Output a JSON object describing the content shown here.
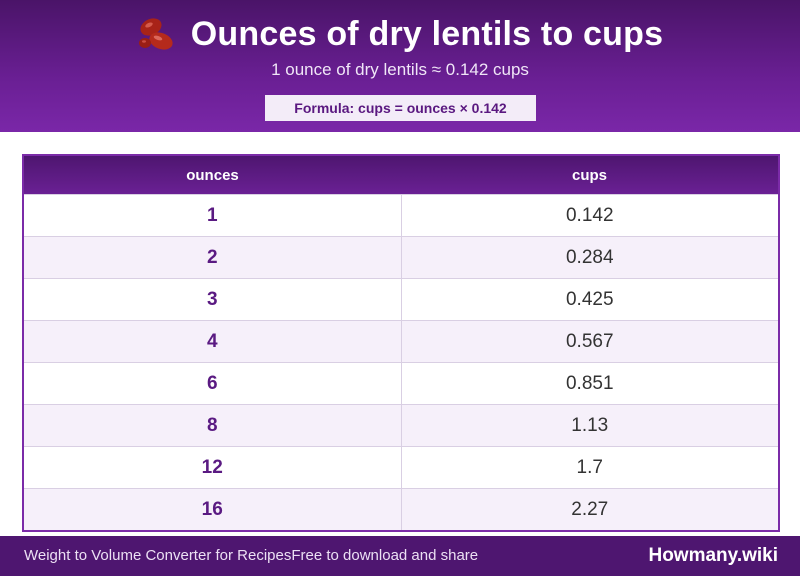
{
  "header": {
    "icon": "kidney-beans-icon",
    "title": "Ounces of dry lentils to cups",
    "subtitle": "1 ounce of dry lentils ≈ 0.142 cups",
    "formula": "Formula: cups = ounces × 0.142"
  },
  "table": {
    "columns": [
      "ounces",
      "cups"
    ],
    "rows": [
      {
        "ounces": "1",
        "cups": "0.142"
      },
      {
        "ounces": "2",
        "cups": "0.284"
      },
      {
        "ounces": "3",
        "cups": "0.425"
      },
      {
        "ounces": "4",
        "cups": "0.567"
      },
      {
        "ounces": "6",
        "cups": "0.851"
      },
      {
        "ounces": "8",
        "cups": "1.13"
      },
      {
        "ounces": "12",
        "cups": "1.7"
      },
      {
        "ounces": "16",
        "cups": "2.27"
      }
    ]
  },
  "footer": {
    "left_text": "Weight to Volume Converter for RecipesFree to download and share",
    "brand": "Howmany.wiki"
  },
  "colors": {
    "header_purple": "#6a1f94",
    "footer_purple": "#4e1670",
    "bean_red": "#b52a1c"
  }
}
